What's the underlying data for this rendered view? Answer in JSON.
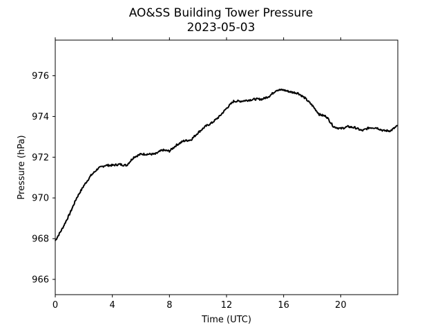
{
  "chart_data": {
    "type": "line",
    "title": "AO&SS Building Tower Pressure",
    "subtitle": "2023-05-03",
    "xlabel": "Time (UTC)",
    "ylabel": "Pressure (hPa)",
    "xlim": [
      0,
      24
    ],
    "ylim": [
      965.25,
      977.75
    ],
    "x_ticks": [
      0,
      4,
      8,
      12,
      16,
      20
    ],
    "y_ticks": [
      966,
      968,
      970,
      972,
      974,
      976
    ],
    "grid": false,
    "series": [
      {
        "color": "#000000",
        "x": [
          0,
          0.5,
          1,
          1.5,
          2,
          2.5,
          3,
          3.5,
          4,
          4.5,
          5,
          5.5,
          6,
          6.5,
          7,
          7.5,
          8,
          8.5,
          9,
          9.5,
          10,
          10.5,
          11,
          11.5,
          12,
          12.5,
          13,
          13.5,
          14,
          14.5,
          15,
          15.5,
          16,
          16.5,
          17,
          17.5,
          18,
          18.5,
          19,
          19.5,
          20,
          20.5,
          21,
          21.5,
          22,
          22.5,
          23,
          23.5,
          24
        ],
        "y": [
          967.9,
          968.5,
          969.2,
          970.0,
          970.6,
          971.1,
          971.45,
          971.6,
          971.6,
          971.65,
          971.6,
          972.0,
          972.15,
          972.15,
          972.15,
          972.35,
          972.3,
          972.6,
          972.8,
          972.85,
          973.2,
          973.5,
          973.7,
          974.0,
          974.4,
          974.75,
          974.75,
          974.8,
          974.85,
          974.85,
          975.0,
          975.3,
          975.3,
          975.2,
          975.15,
          974.9,
          974.55,
          974.1,
          974.0,
          973.5,
          973.4,
          973.5,
          973.45,
          973.3,
          973.45,
          973.45,
          973.3,
          973.3,
          973.55
        ]
      }
    ]
  }
}
